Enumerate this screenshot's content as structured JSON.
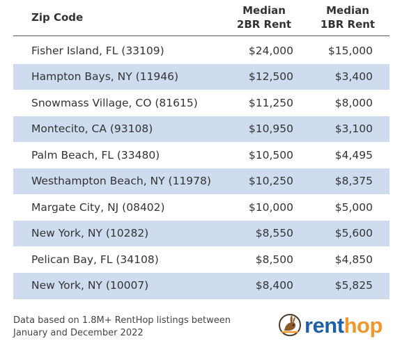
{
  "table": {
    "headers": {
      "zip": "Zip Code",
      "col2_line1": "Median",
      "col2_line2": "2BR Rent",
      "col3_line1": "Median",
      "col3_line2": "1BR Rent"
    },
    "rows": [
      {
        "zip": "Fisher Island, FL (33109)",
        "rent_2br": "$24,000",
        "rent_1br": "$15,000"
      },
      {
        "zip": "Hampton Bays, NY (11946)",
        "rent_2br": "$12,500",
        "rent_1br": "$3,400"
      },
      {
        "zip": "Snowmass Village, CO (81615)",
        "rent_2br": "$11,250",
        "rent_1br": "$8,000"
      },
      {
        "zip": "Montecito, CA (93108)",
        "rent_2br": "$10,950",
        "rent_1br": "$3,100"
      },
      {
        "zip": "Palm Beach, FL (33480)",
        "rent_2br": "$10,500",
        "rent_1br": "$4,495"
      },
      {
        "zip": "Westhampton Beach, NY (11978)",
        "rent_2br": "$10,250",
        "rent_1br": "$8,375"
      },
      {
        "zip": "Margate City, NJ (08402)",
        "rent_2br": "$10,000",
        "rent_1br": "$5,000"
      },
      {
        "zip": "New York, NY (10282)",
        "rent_2br": "$8,550",
        "rent_1br": "$5,600"
      },
      {
        "zip": "Pelican Bay, FL (34108)",
        "rent_2br": "$8,500",
        "rent_1br": "$4,850"
      },
      {
        "zip": "New York, NY (10007)",
        "rent_2br": "$8,400",
        "rent_1br": "$5,825"
      }
    ]
  },
  "footnote": {
    "line1": "Data based on 1.8M+ RentHop listings between",
    "line2": "January and December 2022"
  },
  "logo": {
    "part1": "rent",
    "part2": "hop",
    "icon": "renthop-bunny-icon"
  },
  "colors": {
    "stripe": "#cfdcef",
    "brand_blue": "#1f5fa8",
    "brand_orange": "#f0972f"
  }
}
